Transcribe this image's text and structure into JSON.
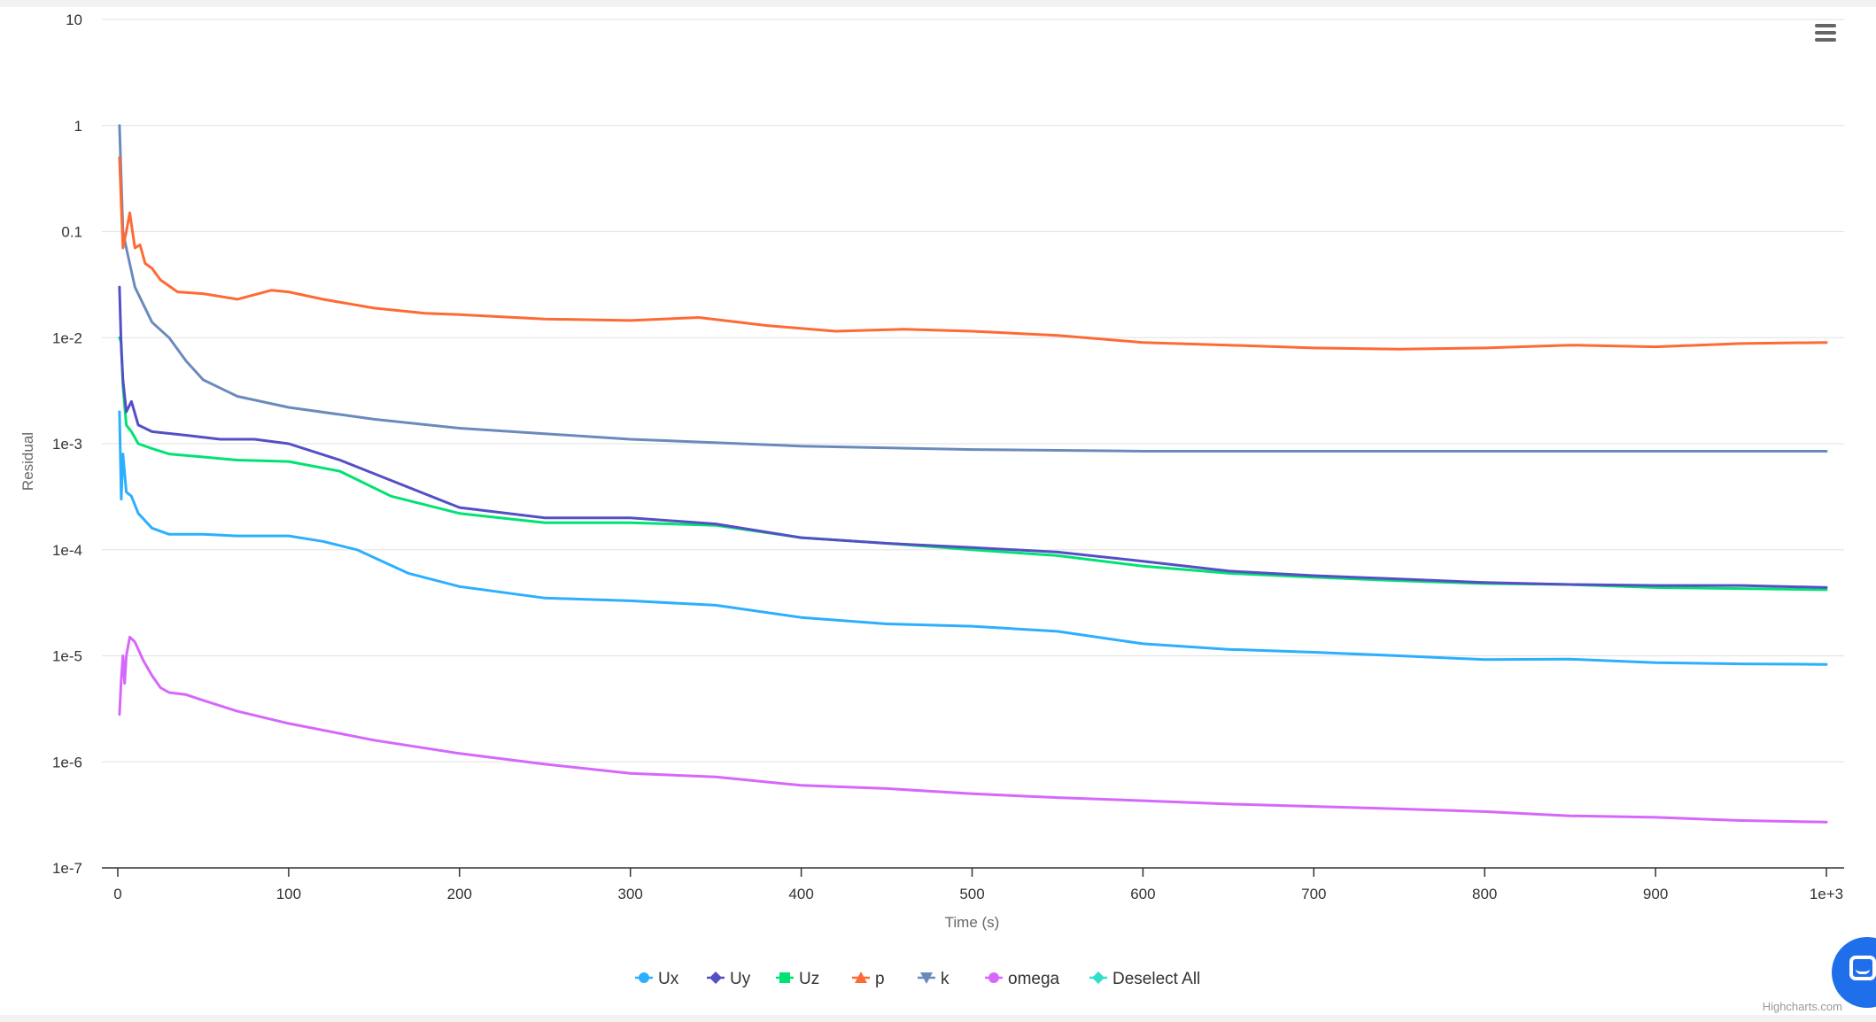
{
  "chart_data": {
    "type": "line",
    "title": "",
    "xlabel": "Time (s)",
    "ylabel": "Residual",
    "y_scale": "log",
    "ylim": [
      1e-07,
      10
    ],
    "xlim": [
      0,
      1000
    ],
    "grid": true,
    "legend_position": "bottom-center",
    "x_ticks": [
      0,
      100,
      200,
      300,
      400,
      500,
      600,
      700,
      800,
      900,
      1000
    ],
    "x_tick_labels": [
      "0",
      "100",
      "200",
      "300",
      "400",
      "500",
      "600",
      "700",
      "800",
      "900",
      "1e+3"
    ],
    "y_ticks": [
      10,
      1,
      0.1,
      0.01,
      0.001,
      0.0001,
      1e-05,
      1e-06,
      1e-07
    ],
    "y_tick_labels": [
      "10",
      "1",
      "0.1",
      "1e-2",
      "1e-3",
      "1e-4",
      "1e-5",
      "1e-6",
      "1e-7"
    ],
    "series": [
      {
        "name": "Ux",
        "color": "#2caffe",
        "marker": "circle",
        "points": [
          [
            1,
            0.002
          ],
          [
            2,
            0.0003
          ],
          [
            3,
            0.0008
          ],
          [
            5,
            0.00035
          ],
          [
            8,
            0.00032
          ],
          [
            12,
            0.00022
          ],
          [
            20,
            0.00016
          ],
          [
            30,
            0.00014
          ],
          [
            50,
            0.00014
          ],
          [
            70,
            0.000135
          ],
          [
            100,
            0.000135
          ],
          [
            120,
            0.00012
          ],
          [
            140,
            0.0001
          ],
          [
            170,
            6e-05
          ],
          [
            200,
            4.5e-05
          ],
          [
            250,
            3.5e-05
          ],
          [
            300,
            3.3e-05
          ],
          [
            350,
            3e-05
          ],
          [
            400,
            2.3e-05
          ],
          [
            450,
            2e-05
          ],
          [
            500,
            1.9e-05
          ],
          [
            550,
            1.7e-05
          ],
          [
            600,
            1.3e-05
          ],
          [
            650,
            1.15e-05
          ],
          [
            700,
            1.08e-05
          ],
          [
            750,
            1e-05
          ],
          [
            800,
            9.2e-06
          ],
          [
            850,
            9.3e-06
          ],
          [
            900,
            8.6e-06
          ],
          [
            950,
            8.4e-06
          ],
          [
            1000,
            8.3e-06
          ]
        ]
      },
      {
        "name": "Uy",
        "color": "#544fc5",
        "marker": "diamond",
        "points": [
          [
            1,
            0.03
          ],
          [
            2,
            0.008
          ],
          [
            3,
            0.004
          ],
          [
            5,
            0.002
          ],
          [
            8,
            0.0025
          ],
          [
            12,
            0.0015
          ],
          [
            20,
            0.0013
          ],
          [
            40,
            0.0012
          ],
          [
            60,
            0.0011
          ],
          [
            80,
            0.0011
          ],
          [
            100,
            0.001
          ],
          [
            130,
            0.0007
          ],
          [
            160,
            0.00045
          ],
          [
            200,
            0.00025
          ],
          [
            250,
            0.0002
          ],
          [
            300,
            0.0002
          ],
          [
            350,
            0.000175
          ],
          [
            400,
            0.00013
          ],
          [
            450,
            0.000115
          ],
          [
            500,
            0.000105
          ],
          [
            550,
            9.5e-05
          ],
          [
            600,
            7.8e-05
          ],
          [
            650,
            6.3e-05
          ],
          [
            700,
            5.7e-05
          ],
          [
            750,
            5.3e-05
          ],
          [
            800,
            4.9e-05
          ],
          [
            850,
            4.7e-05
          ],
          [
            900,
            4.6e-05
          ],
          [
            950,
            4.6e-05
          ],
          [
            1000,
            4.4e-05
          ]
        ]
      },
      {
        "name": "Uz",
        "color": "#00e272",
        "marker": "square",
        "points": [
          [
            1,
            0.01
          ],
          [
            2,
            0.009
          ],
          [
            3,
            0.0035
          ],
          [
            5,
            0.0015
          ],
          [
            8,
            0.0013
          ],
          [
            12,
            0.001
          ],
          [
            20,
            0.0009
          ],
          [
            30,
            0.0008
          ],
          [
            50,
            0.00075
          ],
          [
            70,
            0.0007
          ],
          [
            100,
            0.00068
          ],
          [
            130,
            0.00055
          ],
          [
            160,
            0.00032
          ],
          [
            200,
            0.00022
          ],
          [
            250,
            0.00018
          ],
          [
            300,
            0.00018
          ],
          [
            350,
            0.00017
          ],
          [
            400,
            0.00013
          ],
          [
            450,
            0.000115
          ],
          [
            500,
            0.0001
          ],
          [
            550,
            8.8e-05
          ],
          [
            600,
            7e-05
          ],
          [
            650,
            6e-05
          ],
          [
            700,
            5.5e-05
          ],
          [
            750,
            5.1e-05
          ],
          [
            800,
            4.8e-05
          ],
          [
            850,
            4.7e-05
          ],
          [
            900,
            4.4e-05
          ],
          [
            950,
            4.3e-05
          ],
          [
            1000,
            4.2e-05
          ]
        ]
      },
      {
        "name": "p",
        "color": "#fe6a35",
        "marker": "triangle",
        "points": [
          [
            1,
            0.5
          ],
          [
            3,
            0.07
          ],
          [
            5,
            0.1
          ],
          [
            7,
            0.15
          ],
          [
            10,
            0.07
          ],
          [
            13,
            0.075
          ],
          [
            16,
            0.05
          ],
          [
            20,
            0.045
          ],
          [
            25,
            0.035
          ],
          [
            35,
            0.027
          ],
          [
            50,
            0.026
          ],
          [
            70,
            0.023
          ],
          [
            90,
            0.028
          ],
          [
            100,
            0.027
          ],
          [
            120,
            0.023
          ],
          [
            150,
            0.019
          ],
          [
            180,
            0.017
          ],
          [
            200,
            0.0165
          ],
          [
            250,
            0.015
          ],
          [
            300,
            0.0145
          ],
          [
            340,
            0.0155
          ],
          [
            380,
            0.013
          ],
          [
            420,
            0.0115
          ],
          [
            460,
            0.012
          ],
          [
            500,
            0.0115
          ],
          [
            550,
            0.0105
          ],
          [
            600,
            0.009
          ],
          [
            650,
            0.0085
          ],
          [
            700,
            0.008
          ],
          [
            750,
            0.0078
          ],
          [
            800,
            0.008
          ],
          [
            850,
            0.0085
          ],
          [
            900,
            0.0082
          ],
          [
            950,
            0.0088
          ],
          [
            1000,
            0.009
          ]
        ]
      },
      {
        "name": "k",
        "color": "#6b8abc",
        "marker": "triangle-down",
        "points": [
          [
            1,
            1.0
          ],
          [
            3,
            0.1
          ],
          [
            5,
            0.07
          ],
          [
            10,
            0.03
          ],
          [
            20,
            0.014
          ],
          [
            30,
            0.01
          ],
          [
            40,
            0.006
          ],
          [
            50,
            0.004
          ],
          [
            70,
            0.0028
          ],
          [
            100,
            0.0022
          ],
          [
            150,
            0.0017
          ],
          [
            200,
            0.0014
          ],
          [
            300,
            0.0011
          ],
          [
            400,
            0.00095
          ],
          [
            500,
            0.00088
          ],
          [
            600,
            0.00085
          ],
          [
            700,
            0.00085
          ],
          [
            800,
            0.00085
          ],
          [
            900,
            0.00085
          ],
          [
            1000,
            0.00085
          ]
        ]
      },
      {
        "name": "omega",
        "color": "#d568fb",
        "marker": "circle",
        "points": [
          [
            1,
            2.8e-06
          ],
          [
            2,
            6e-06
          ],
          [
            3,
            1e-05
          ],
          [
            4,
            5.5e-06
          ],
          [
            5,
            1e-05
          ],
          [
            7,
            1.5e-05
          ],
          [
            10,
            1.35e-05
          ],
          [
            15,
            9e-06
          ],
          [
            20,
            6.5e-06
          ],
          [
            25,
            5e-06
          ],
          [
            30,
            4.5e-06
          ],
          [
            40,
            4.3e-06
          ],
          [
            50,
            3.8e-06
          ],
          [
            70,
            3e-06
          ],
          [
            100,
            2.3e-06
          ],
          [
            150,
            1.6e-06
          ],
          [
            200,
            1.2e-06
          ],
          [
            250,
            9.5e-07
          ],
          [
            300,
            7.8e-07
          ],
          [
            350,
            7.2e-07
          ],
          [
            400,
            6e-07
          ],
          [
            450,
            5.6e-07
          ],
          [
            500,
            5e-07
          ],
          [
            550,
            4.6e-07
          ],
          [
            600,
            4.3e-07
          ],
          [
            650,
            4e-07
          ],
          [
            700,
            3.8e-07
          ],
          [
            750,
            3.6e-07
          ],
          [
            800,
            3.4e-07
          ],
          [
            850,
            3.1e-07
          ],
          [
            900,
            3e-07
          ],
          [
            950,
            2.8e-07
          ],
          [
            1000,
            2.7e-07
          ]
        ]
      }
    ],
    "legend_items": [
      {
        "label": "Ux",
        "color": "#2caffe",
        "marker": "circle"
      },
      {
        "label": "Uy",
        "color": "#544fc5",
        "marker": "diamond"
      },
      {
        "label": "Uz",
        "color": "#00e272",
        "marker": "square"
      },
      {
        "label": "p",
        "color": "#fe6a35",
        "marker": "triangle"
      },
      {
        "label": "k",
        "color": "#6b8abc",
        "marker": "triangle-down"
      },
      {
        "label": "omega",
        "color": "#d568fb",
        "marker": "circle"
      },
      {
        "label": "Deselect All",
        "color": "#2ee0ca",
        "marker": "diamond"
      }
    ]
  },
  "credits": "Highcharts.com",
  "menu_icon": "hamburger-menu-icon",
  "chat_icon": "chat-bubble-icon",
  "chat_color": "#1f6feb"
}
